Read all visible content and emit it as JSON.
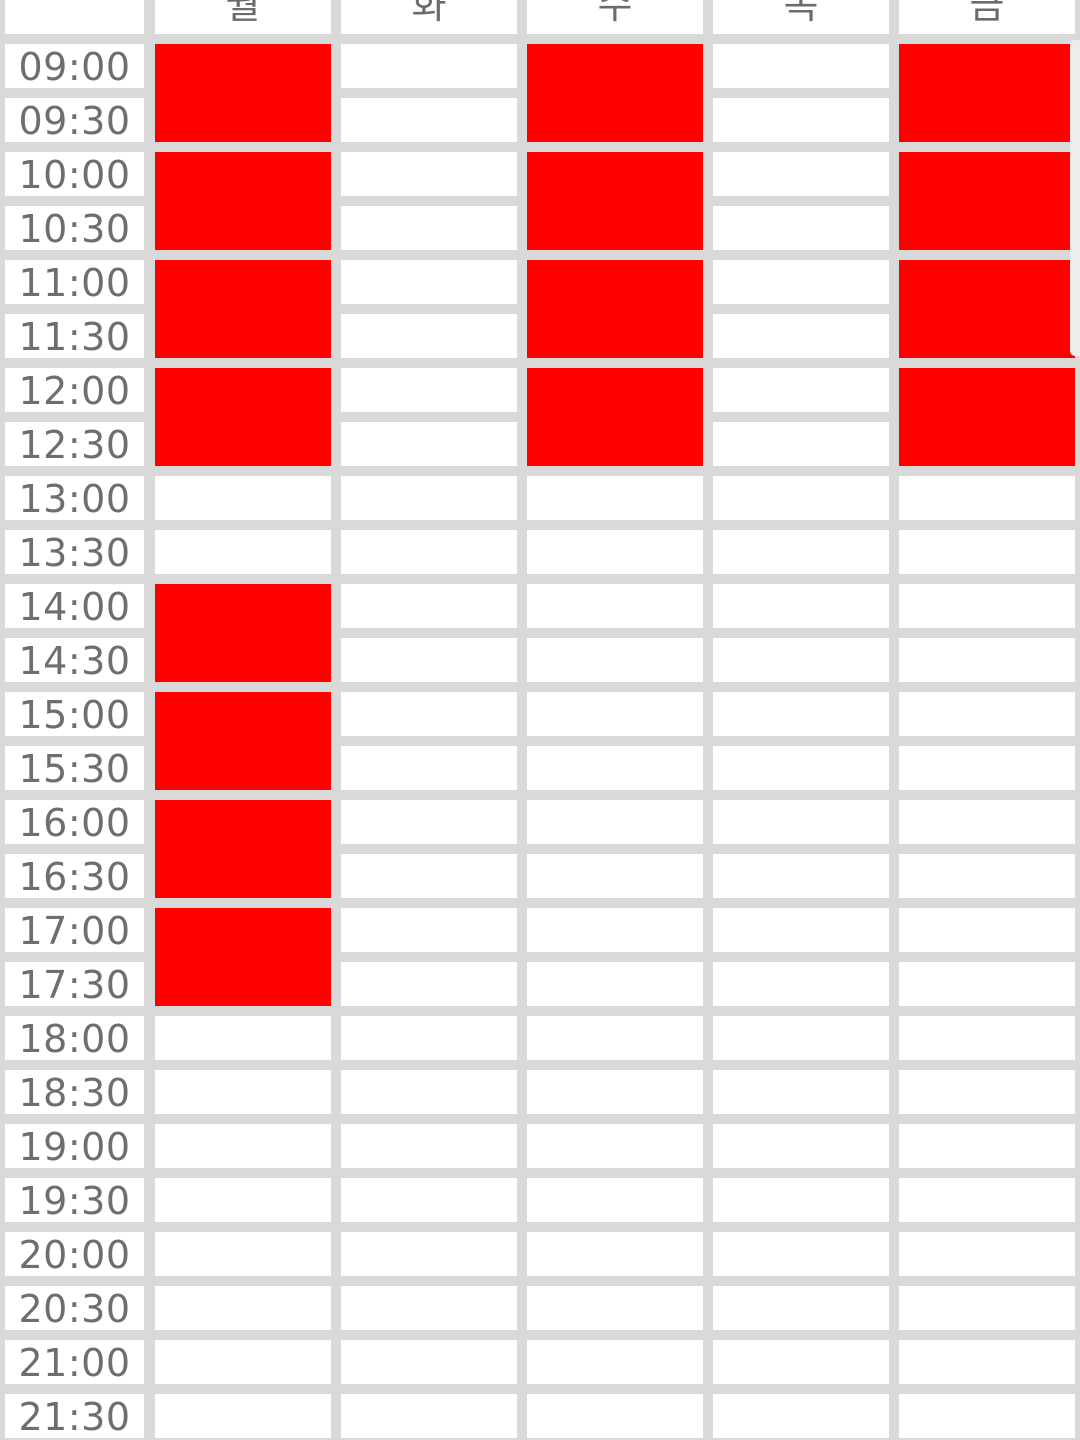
{
  "timetable": {
    "days": [
      "월",
      "화",
      "수",
      "목",
      "금"
    ],
    "times": [
      "09:00",
      "09:30",
      "10:00",
      "10:30",
      "11:00",
      "11:30",
      "12:00",
      "12:30",
      "13:00",
      "13:30",
      "14:00",
      "14:30",
      "15:00",
      "15:30",
      "16:00",
      "16:30",
      "17:00",
      "17:30",
      "18:00",
      "18:30",
      "19:00",
      "19:30",
      "20:00",
      "20:30",
      "21:00",
      "21:30"
    ],
    "colors": {
      "background": "#d9d9d9",
      "cell": "#ffffff",
      "block": "#ff0000",
      "text": "#6e6e6e"
    },
    "blocks": [
      {
        "day": "월",
        "start": "09:00",
        "end": "10:00"
      },
      {
        "day": "월",
        "start": "10:00",
        "end": "11:00"
      },
      {
        "day": "월",
        "start": "11:00",
        "end": "12:00"
      },
      {
        "day": "월",
        "start": "12:00",
        "end": "13:00"
      },
      {
        "day": "월",
        "start": "14:00",
        "end": "15:00"
      },
      {
        "day": "월",
        "start": "15:00",
        "end": "16:00"
      },
      {
        "day": "월",
        "start": "16:00",
        "end": "17:00"
      },
      {
        "day": "월",
        "start": "17:00",
        "end": "18:00"
      },
      {
        "day": "수",
        "start": "09:00",
        "end": "10:00"
      },
      {
        "day": "수",
        "start": "10:00",
        "end": "11:00"
      },
      {
        "day": "수",
        "start": "11:00",
        "end": "12:00"
      },
      {
        "day": "수",
        "start": "12:00",
        "end": "13:00"
      },
      {
        "day": "금",
        "start": "09:00",
        "end": "10:00"
      },
      {
        "day": "금",
        "start": "10:00",
        "end": "11:00"
      },
      {
        "day": "금",
        "start": "11:00",
        "end": "12:00"
      },
      {
        "day": "금",
        "start": "12:00",
        "end": "13:00"
      }
    ]
  }
}
